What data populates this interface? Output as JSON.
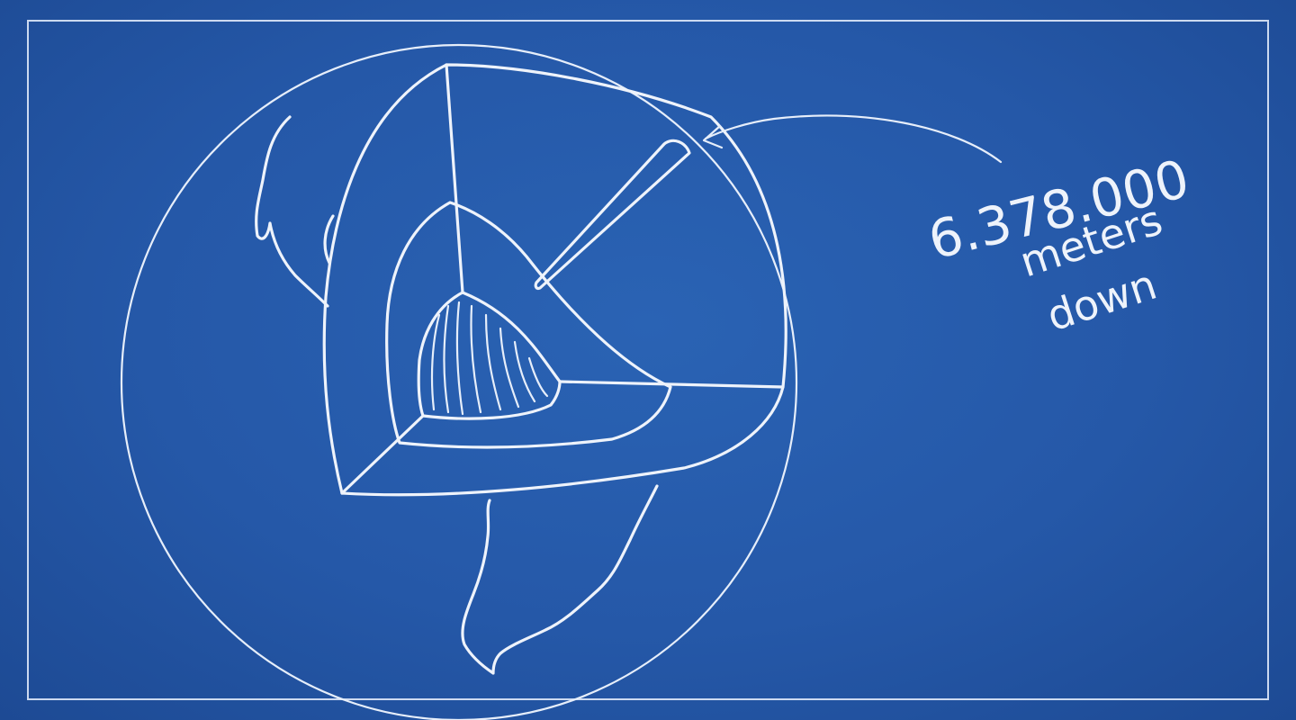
{
  "annotation": {
    "number": "6.378.000",
    "unit": "meters",
    "direction": "down"
  },
  "colors": {
    "background": "#2457a6",
    "chalk": "#eef3fb"
  }
}
